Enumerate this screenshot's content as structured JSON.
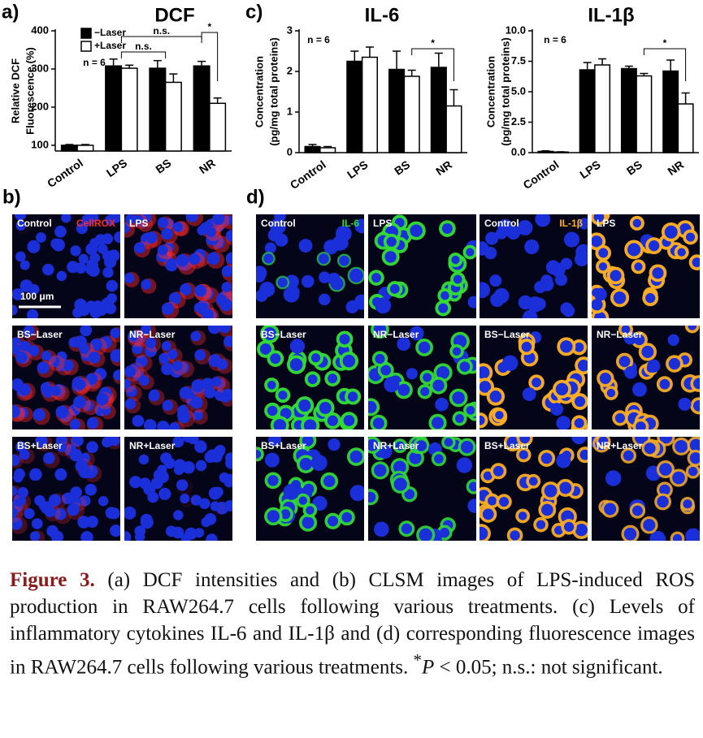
{
  "chart_data": [
    {
      "type": "bar",
      "panel": "a)",
      "title": "DCF",
      "ylabel": [
        "Relative DCF",
        "Fluorescence (%)"
      ],
      "categories": [
        "Control",
        "LPS",
        "BS",
        "NR"
      ],
      "series": [
        {
          "name": "−Laser",
          "color": "#000000",
          "values": [
            100,
            308,
            302,
            308
          ],
          "errors": [
            2,
            18,
            20,
            12
          ]
        },
        {
          "name": "+Laser",
          "color": "#ffffff",
          "values": [
            100,
            302,
            265,
            210
          ],
          "errors": [
            2,
            8,
            22,
            14
          ]
        }
      ],
      "ylim": [
        85,
        400
      ],
      "yticks": [
        100,
        200,
        300,
        400
      ],
      "legend": "top-left",
      "annotations": [
        "n.s.",
        "n.s.",
        "*",
        "n = 6"
      ]
    },
    {
      "type": "bar",
      "panel": "c)",
      "title": "IL-6",
      "ylabel": [
        "Concentration",
        "(pg/mg total proteins)"
      ],
      "categories": [
        "Control",
        "LPS",
        "BS",
        "NR"
      ],
      "series": [
        {
          "name": "−Laser",
          "color": "#000000",
          "values": [
            0.15,
            2.25,
            2.05,
            2.1
          ],
          "errors": [
            0.05,
            0.25,
            0.45,
            0.35
          ]
        },
        {
          "name": "+Laser",
          "color": "#ffffff",
          "values": [
            0.12,
            2.35,
            1.88,
            1.15
          ],
          "errors": [
            0.03,
            0.25,
            0.15,
            0.4
          ]
        }
      ],
      "ylim": [
        0,
        3
      ],
      "yticks": [
        0,
        1,
        2,
        3
      ],
      "annotations": [
        "n = 6",
        "*"
      ]
    },
    {
      "type": "bar",
      "title": "IL-1β",
      "ylabel": [
        "Concentration",
        "(pg/mg total proteins)"
      ],
      "categories": [
        "Control",
        "LPS",
        "BS",
        "NR"
      ],
      "series": [
        {
          "name": "−Laser",
          "color": "#000000",
          "values": [
            0.1,
            6.8,
            6.9,
            6.7
          ],
          "errors": [
            0.05,
            0.6,
            0.2,
            0.9
          ]
        },
        {
          "name": "+Laser",
          "color": "#ffffff",
          "values": [
            0.05,
            7.2,
            6.3,
            4.0
          ],
          "errors": [
            0.02,
            0.5,
            0.2,
            0.9
          ]
        }
      ],
      "ylim": [
        0,
        10
      ],
      "yticks": [
        {
          "value": 0,
          "label": "0.0"
        },
        {
          "value": 2.5,
          "label": "2.5"
        },
        {
          "value": 5,
          "label": "5.0"
        },
        {
          "value": 7.5,
          "label": "7.5"
        },
        {
          "value": 10,
          "label": "10.0"
        }
      ],
      "annotations": [
        "n = 6",
        "*"
      ]
    }
  ],
  "images": [
    {
      "panel": "b)",
      "marker": "CellROX",
      "marker_color": "#ff2a2a",
      "scale_bar": "100 μm",
      "tiles": [
        "Control",
        "LPS",
        "BS−Laser",
        "NR−Laser",
        "BS+Laser",
        "NR+Laser"
      ]
    },
    {
      "panel": "d)",
      "marker": "IL-6",
      "marker_color": "#33dd33",
      "tiles": [
        "Control",
        "LPS",
        "BS−Laser",
        "NR−Laser",
        "BS+Laser",
        "NR+Laser"
      ]
    },
    {
      "marker": "IL-1β",
      "marker_color": "#ffb020",
      "tiles": [
        "Control",
        "LPS",
        "BS−Laser",
        "NR−Laser",
        "BS+Laser",
        "NR+Laser"
      ]
    }
  ],
  "caption": {
    "label": "Figure 3.",
    "text": " (a) DCF intensities and (b) CLSM images of LPS-induced ROS production in RAW264.7 cells following various treatments. (c) Levels of inflammatory cytokines IL-6 and IL-1β and (d) corresponding fluorescence images in RAW264.7 cells following various treatments. ",
    "star": "*",
    "p": "P",
    "rest": " < 0.05; n.s.: not significant."
  }
}
